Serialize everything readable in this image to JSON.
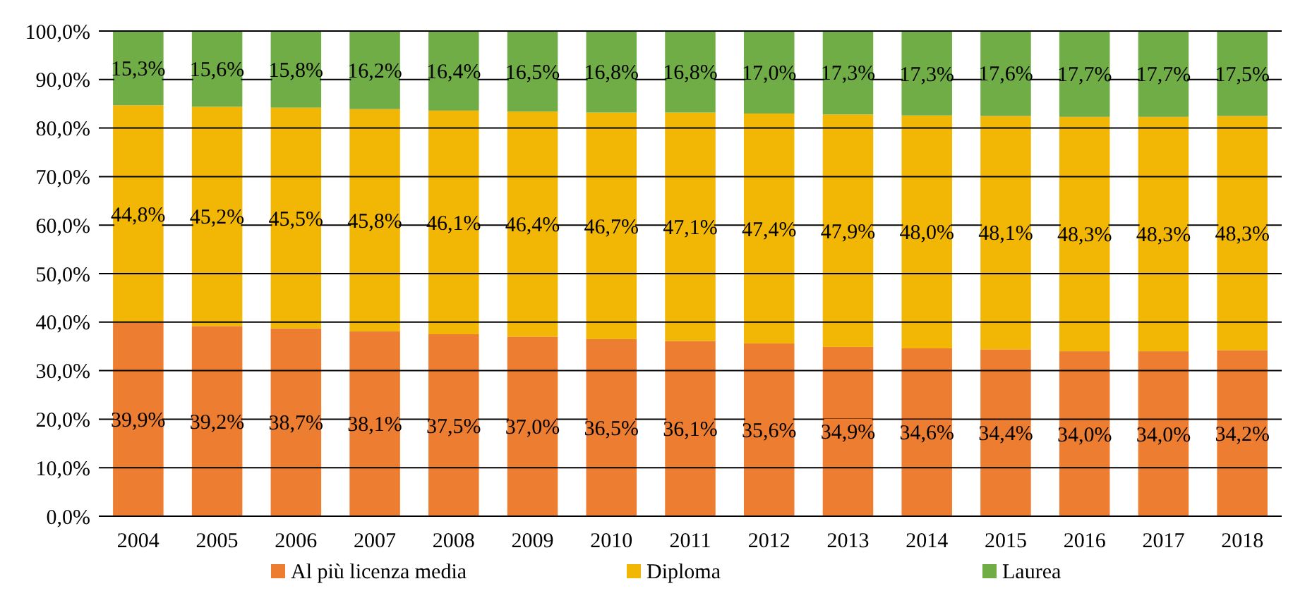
{
  "chart_data": {
    "type": "bar",
    "stacked": true,
    "categories": [
      "2004",
      "2005",
      "2006",
      "2007",
      "2008",
      "2009",
      "2010",
      "2011",
      "2012",
      "2013",
      "2014",
      "2015",
      "2016",
      "2017",
      "2018"
    ],
    "series": [
      {
        "name": "Al più licenza media",
        "color": "#ed7d31",
        "values": [
          39.9,
          39.2,
          38.7,
          38.1,
          37.5,
          37.0,
          36.5,
          36.1,
          35.6,
          34.9,
          34.6,
          34.4,
          34.0,
          34.0,
          34.2
        ],
        "value_labels": [
          "39,9%",
          "39,2%",
          "38,7%",
          "38,1%",
          "37,5%",
          "37,0%",
          "36,5%",
          "36,1%",
          "35,6%",
          "34,9%",
          "34,6%",
          "34,4%",
          "34,0%",
          "34,0%",
          "34,2%"
        ]
      },
      {
        "name": "Diploma",
        "color": "#f2b705",
        "values": [
          44.8,
          45.2,
          45.5,
          45.8,
          46.1,
          46.4,
          46.7,
          47.1,
          47.4,
          47.9,
          48.0,
          48.1,
          48.3,
          48.3,
          48.3
        ],
        "value_labels": [
          "44,8%",
          "45,2%",
          "45,5%",
          "45,8%",
          "46,1%",
          "46,4%",
          "46,7%",
          "47,1%",
          "47,4%",
          "47,9%",
          "48,0%",
          "48,1%",
          "48,3%",
          "48,3%",
          "48,3%"
        ]
      },
      {
        "name": "Laurea",
        "color": "#70ad47",
        "values": [
          15.3,
          15.6,
          15.8,
          16.2,
          16.4,
          16.5,
          16.8,
          16.8,
          17.0,
          17.3,
          17.3,
          17.6,
          17.7,
          17.7,
          17.5
        ],
        "value_labels": [
          "15,3%",
          "15,6%",
          "15,8%",
          "16,2%",
          "16,4%",
          "16,5%",
          "16,8%",
          "16,8%",
          "17,0%",
          "17,3%",
          "17,3%",
          "17,6%",
          "17,7%",
          "17,7%",
          "17,5%"
        ]
      }
    ],
    "ylim": [
      0,
      100
    ],
    "yticks": [
      {
        "value": 0,
        "label": "0,0%"
      },
      {
        "value": 10,
        "label": "10,0%"
      },
      {
        "value": 20,
        "label": "20,0%"
      },
      {
        "value": 30,
        "label": "30,0%"
      },
      {
        "value": 40,
        "label": "40,0%"
      },
      {
        "value": 50,
        "label": "50,0%"
      },
      {
        "value": 60,
        "label": "60,0%"
      },
      {
        "value": 70,
        "label": "70,0%"
      },
      {
        "value": 80,
        "label": "80,0%"
      },
      {
        "value": 90,
        "label": "90,0%"
      },
      {
        "value": 100,
        "label": "100,0%"
      }
    ],
    "grid": "y",
    "legend": "bottom"
  }
}
